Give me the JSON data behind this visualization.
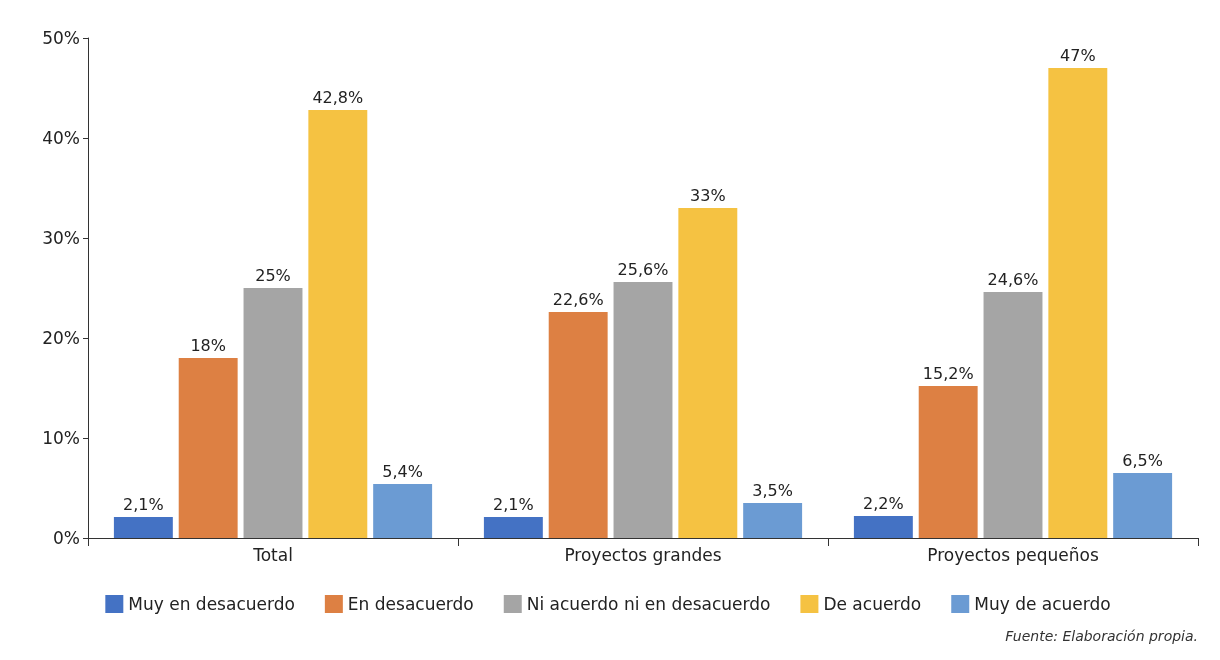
{
  "chart_data": {
    "type": "bar",
    "categories": [
      "Total",
      "Proyectos grandes",
      "Proyectos pequeños"
    ],
    "series": [
      {
        "name": "Muy en desacuerdo",
        "color": "#4472c4",
        "values": [
          2.1,
          2.1,
          2.2
        ],
        "value_labels": [
          "2,1%",
          "2,1%",
          "2,2%"
        ]
      },
      {
        "name": "En desacuerdo",
        "color": "#dd8043",
        "values": [
          18,
          22.6,
          15.2
        ],
        "value_labels": [
          "18%",
          "22,6%",
          "15,2%"
        ]
      },
      {
        "name": "Ni acuerdo ni en desacuerdo",
        "color": "#a5a5a5",
        "values": [
          25,
          25.6,
          24.6
        ],
        "value_labels": [
          "25%",
          "25,6%",
          "24,6%"
        ]
      },
      {
        "name": "De acuerdo",
        "color": "#f5c242",
        "values": [
          42.8,
          33,
          47
        ],
        "value_labels": [
          "42,8%",
          "33%",
          "47%"
        ]
      },
      {
        "name": "Muy de acuerdo",
        "color": "#6b9bd3",
        "values": [
          5.4,
          3.5,
          6.5
        ],
        "value_labels": [
          "5,4%",
          "3,5%",
          "6,5%"
        ]
      }
    ],
    "ylim": [
      0,
      50
    ],
    "yticks": [
      {
        "value": 0,
        "label": "0%"
      },
      {
        "value": 10,
        "label": "10%"
      },
      {
        "value": 20,
        "label": "20%"
      },
      {
        "value": 30,
        "label": "30%"
      },
      {
        "value": 40,
        "label": "40%"
      },
      {
        "value": 50,
        "label": "50%"
      }
    ],
    "grid": false,
    "legend": "bottom",
    "annotations": [
      "Fuente: Elaboración propia."
    ]
  }
}
